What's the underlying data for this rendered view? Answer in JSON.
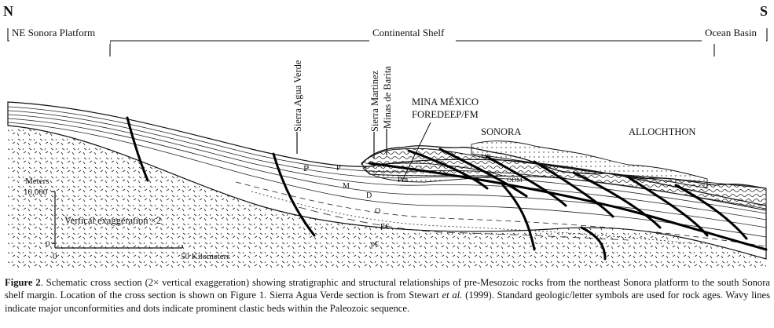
{
  "compass": {
    "north": "N",
    "south": "S"
  },
  "regions": {
    "platform": "NE Sonora Platform",
    "shelf": "Continental Shelf",
    "basin": "Ocean Basin"
  },
  "localities": {
    "agua_verde": "Sierra Agua Verde",
    "martinez": "Sierra Martinez",
    "barita": "Minas de Barita"
  },
  "labels": {
    "foredeep_line1": "MINA MÉXICO",
    "foredeep_line2": "FOREDEEP/FM",
    "sonora": "SONORA",
    "allochthon": "ALLOCHTHON"
  },
  "unit_symbols": {
    "pp": "ℙ",
    "p": "P",
    "pm": "Pm",
    "m": "M",
    "d": "D",
    "o": "O",
    "ec": "Ɇ€",
    "pc": "p€",
    "mp": "MP",
    "odm": "ODM"
  },
  "scale": {
    "vertical_title": "Meters",
    "v_top": "10,000",
    "v_bottom": "0",
    "exaggeration": "Vertical exaggeration ×2",
    "h_start": "0",
    "h_end": "50 Kilometers"
  },
  "caption": {
    "lead": "Figure 2",
    "text": ". Schematic cross section (2× vertical exaggeration) showing stratigraphic and structural relationships of pre-Mesozoic rocks from the northeast Sonora platform to the south Sonora shelf margin. Location of the cross section is shown on Figure 1. Sierra Agua Verde section is from Stewart ",
    "italic": "et al.",
    "text_end": " (1999). Standard geologic/letter symbols are used for rock ages. Wavy lines indicate major unconformities and dots indicate prominent clastic beds within the Paleozoic sequence."
  },
  "colors": {
    "ink": "#111111",
    "background": "#ffffff"
  }
}
